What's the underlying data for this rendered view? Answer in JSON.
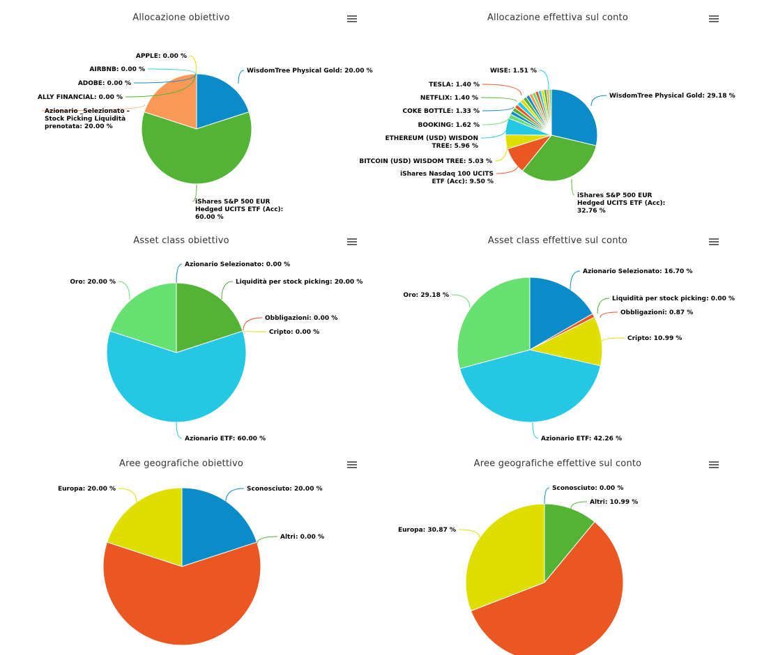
{
  "menu_icon": "hamburger-menu-icon",
  "chart_data": [
    {
      "type": "pie",
      "title": "Allocazione obiettivo",
      "slices": [
        {
          "label": "WisdomTree Physical Gold: 20.00 %",
          "value": 20.0,
          "color": "#0a8cc8"
        },
        {
          "label": "iShares S&P 500 EUR Hedged UCITS ETF (Acc): 60.00 %",
          "value": 60.0,
          "color": "#52b334"
        },
        {
          "label": "Azionario _Selezionato – Stock Picking Liquidità prenotata: 20.00 %",
          "value": 20.0,
          "color": "#fd9958"
        },
        {
          "label": "ALLY FINANCIAL: 0.00 %",
          "value": 0,
          "color": "#52b334"
        },
        {
          "label": "ADOBE: 0.00 %",
          "value": 0,
          "color": "#0a8cc8"
        },
        {
          "label": "AIRBNB: 0.00 %",
          "value": 0,
          "color": "#28c8e4"
        },
        {
          "label": "APPLE: 0.00 %",
          "value": 0,
          "color": "#e0e000"
        }
      ]
    },
    {
      "type": "pie",
      "title": "Allocazione effettiva sul conto",
      "slices": [
        {
          "label": "WisdomTree Physical Gold: 29.18 %",
          "value": 29.18,
          "color": "#0a8cc8"
        },
        {
          "label": "iShares S&P 500 EUR Hedged UCITS ETF (Acc): 32.76 %",
          "value": 32.76,
          "color": "#52b334"
        },
        {
          "label": "iShares Nasdaq 100 UCITS ETF (Acc): 9.50 %",
          "value": 9.5,
          "color": "#eb5722"
        },
        {
          "label": "BITCOIN (USD) WISDOM TREE: 5.03 %",
          "value": 5.03,
          "color": "#dede00"
        },
        {
          "label": "ETHEREUM (USD) WISDON TREE: 5.96 %",
          "value": 5.96,
          "color": "#24c8e4"
        },
        {
          "label": "BOOKING: 1.62 %",
          "value": 1.62,
          "color": "#66e070"
        },
        {
          "label": "COKE BOTTLE: 1.33 %",
          "value": 1.33,
          "color": "#0a8cc8"
        },
        {
          "label": "NETFLIX: 1.40 %",
          "value": 1.4,
          "color": "#52b334"
        },
        {
          "label": "TESLA: 1.40 %",
          "value": 1.4,
          "color": "#eb5722"
        },
        {
          "label": "WISE: 1.51 %",
          "value": 1.51,
          "color": "#24c8e4"
        }
      ],
      "unlabeled_small_slices": [
        1.33,
        1.3,
        1.25,
        1.2,
        1.15,
        1.1,
        1.05,
        1.0,
        0.95,
        0.9,
        0.85
      ],
      "unlabeled_colors": [
        "#dede00",
        "#52b334",
        "#0a8cc8",
        "#fd9958",
        "#66e070",
        "#eb5722",
        "#24c8e4",
        "#dede00",
        "#52b334",
        "#fd9958",
        "#66e070"
      ]
    },
    {
      "type": "pie",
      "title": "Asset class obiettivo",
      "slices": [
        {
          "label": "Azionario Selezionato: 0.00 %",
          "value": 0,
          "color": "#0a8cc8"
        },
        {
          "label": "Liquidità per stock picking: 20.00 %",
          "value": 20.0,
          "color": "#52b334"
        },
        {
          "label": "Obbligazioni: 0.00 %",
          "value": 0,
          "color": "#eb5722"
        },
        {
          "label": "Cripto: 0.00 %",
          "value": 0,
          "color": "#dede00"
        },
        {
          "label": "Azionario ETF: 60.00 %",
          "value": 60.0,
          "color": "#24c8e4"
        },
        {
          "label": "Oro: 20.00 %",
          "value": 20.0,
          "color": "#66e070"
        }
      ]
    },
    {
      "type": "pie",
      "title": "Asset class effettive sul conto",
      "slices": [
        {
          "label": "Azionario Selezionato: 16.70 %",
          "value": 16.7,
          "color": "#0a8cc8"
        },
        {
          "label": "Liquidità per stock picking: 0.00 %",
          "value": 0,
          "color": "#52b334"
        },
        {
          "label": "Obbligazioni: 0.87 %",
          "value": 0.87,
          "color": "#eb5722"
        },
        {
          "label": "Cripto: 10.99 %",
          "value": 10.99,
          "color": "#dede00"
        },
        {
          "label": "Azionario ETF: 42.26 %",
          "value": 42.26,
          "color": "#24c8e4"
        },
        {
          "label": "Oro: 29.18 %",
          "value": 29.18,
          "color": "#66e070"
        }
      ]
    },
    {
      "type": "pie",
      "title": "Aree geografiche obiettivo",
      "slices": [
        {
          "label": "Sconosciuto: 20.00 %",
          "value": 20.0,
          "color": "#0a8cc8"
        },
        {
          "label": "Altri: 0.00 %",
          "value": 0,
          "color": "#52b334"
        },
        {
          "label": "",
          "value": 60.0,
          "color": "#eb5722"
        },
        {
          "label": "Europa: 20.00 %",
          "value": 20.0,
          "color": "#dede00"
        }
      ]
    },
    {
      "type": "pie",
      "title": "Aree geografiche effettive sul conto",
      "slices": [
        {
          "label": "Sconosciuto: 0.00 %",
          "value": 0,
          "color": "#0a8cc8"
        },
        {
          "label": "Altri: 10.99 %",
          "value": 10.99,
          "color": "#52b334"
        },
        {
          "label": "",
          "value": 58.14,
          "color": "#eb5722"
        },
        {
          "label": "Europa: 30.87 %",
          "value": 30.87,
          "color": "#dede00"
        }
      ]
    }
  ]
}
